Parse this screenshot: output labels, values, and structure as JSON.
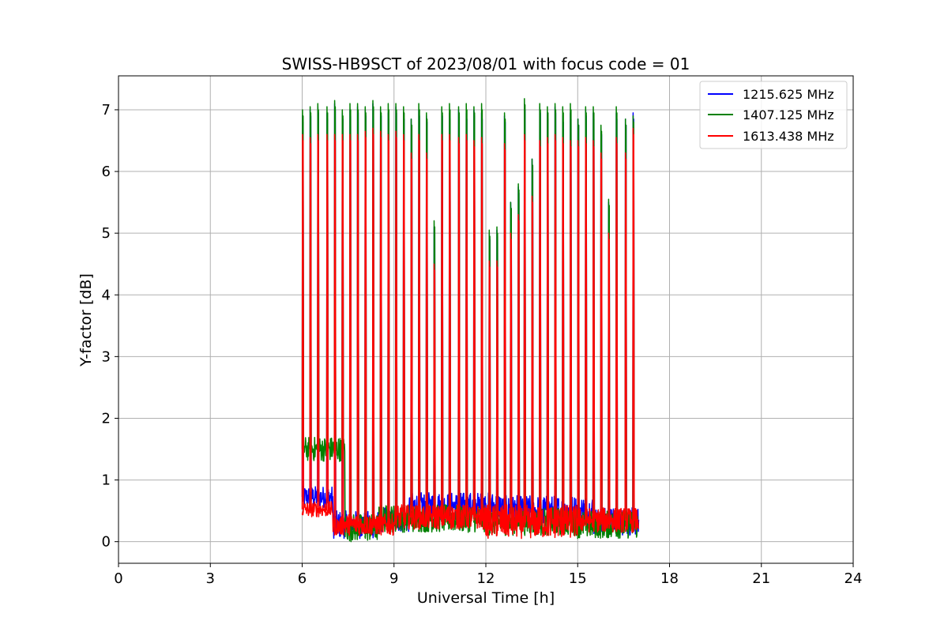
{
  "chart_data": {
    "type": "line",
    "title": "SWISS-HB9SCT of 2023/08/01 with focus code = 01",
    "xlabel": "Universal Time [h]",
    "ylabel": "Y-factor [dB]",
    "xlim": [
      0,
      24
    ],
    "ylim": [
      -0.35,
      7.55
    ],
    "xticks": [
      0,
      3,
      6,
      9,
      12,
      15,
      18,
      21,
      24
    ],
    "yticks": [
      0,
      1,
      2,
      3,
      4,
      5,
      6,
      7
    ],
    "grid": true,
    "legend_position": "top-right",
    "series": [
      {
        "name": "1215.625 MHz",
        "color": "#0000ff",
        "data_start_h": 6.0,
        "data_end_h": 17.0,
        "baseline_segments": [
          {
            "x0": 6.0,
            "x1": 7.0,
            "low": 0.55,
            "high": 0.9
          },
          {
            "x0": 7.0,
            "x1": 8.5,
            "low": 0.05,
            "high": 0.5
          },
          {
            "x0": 8.5,
            "x1": 9.5,
            "low": 0.15,
            "high": 0.55
          },
          {
            "x0": 9.5,
            "x1": 12.5,
            "low": 0.35,
            "high": 0.8
          },
          {
            "x0": 12.5,
            "x1": 15.5,
            "low": 0.25,
            "high": 0.75
          },
          {
            "x0": 15.5,
            "x1": 17.0,
            "low": 0.1,
            "high": 0.55
          }
        ],
        "peaks": [
          [
            6.0,
            6.9
          ],
          [
            6.25,
            7.0
          ],
          [
            6.5,
            7.05
          ],
          [
            6.8,
            6.95
          ],
          [
            7.05,
            7.1
          ],
          [
            7.3,
            6.95
          ],
          [
            7.55,
            7.0
          ],
          [
            7.8,
            7.05
          ],
          [
            8.05,
            7.0
          ],
          [
            8.3,
            7.1
          ],
          [
            8.55,
            7.0
          ],
          [
            8.8,
            6.95
          ],
          [
            9.05,
            7.05
          ],
          [
            9.3,
            6.95
          ],
          [
            9.55,
            6.85
          ],
          [
            9.8,
            7.0
          ],
          [
            10.05,
            6.9
          ],
          [
            10.3,
            5.1
          ],
          [
            10.55,
            7.0
          ],
          [
            10.8,
            6.95
          ],
          [
            11.1,
            7.0
          ],
          [
            11.35,
            6.95
          ],
          [
            11.6,
            7.0
          ],
          [
            11.85,
            6.95
          ],
          [
            12.1,
            5.0
          ],
          [
            12.35,
            5.05
          ],
          [
            12.6,
            6.9
          ],
          [
            12.8,
            5.5
          ],
          [
            13.05,
            5.75
          ],
          [
            13.25,
            7.1
          ],
          [
            13.5,
            6.2
          ],
          [
            13.75,
            7.05
          ],
          [
            14.0,
            6.95
          ],
          [
            14.25,
            7.05
          ],
          [
            14.5,
            6.9
          ],
          [
            14.75,
            6.95
          ],
          [
            15.0,
            6.85
          ],
          [
            15.25,
            7.0
          ],
          [
            15.5,
            6.95
          ],
          [
            15.75,
            6.7
          ],
          [
            16.0,
            5.5
          ],
          [
            16.25,
            6.95
          ],
          [
            16.55,
            6.85
          ],
          [
            16.8,
            6.95
          ]
        ]
      },
      {
        "name": "1407.125 MHz",
        "color": "#008000",
        "data_start_h": 6.0,
        "data_end_h": 17.0,
        "baseline_segments": [
          {
            "x0": 6.0,
            "x1": 7.4,
            "low": 1.3,
            "high": 1.7
          },
          {
            "x0": 7.4,
            "x1": 8.5,
            "low": 0.0,
            "high": 0.45
          },
          {
            "x0": 8.5,
            "x1": 12.0,
            "low": 0.15,
            "high": 0.6
          },
          {
            "x0": 12.0,
            "x1": 15.0,
            "low": 0.1,
            "high": 0.55
          },
          {
            "x0": 15.0,
            "x1": 17.0,
            "low": 0.05,
            "high": 0.5
          }
        ],
        "peaks": [
          [
            6.0,
            7.0
          ],
          [
            6.25,
            7.05
          ],
          [
            6.5,
            7.1
          ],
          [
            6.8,
            7.05
          ],
          [
            7.05,
            7.15
          ],
          [
            7.3,
            7.0
          ],
          [
            7.55,
            7.1
          ],
          [
            7.8,
            7.1
          ],
          [
            8.05,
            7.05
          ],
          [
            8.3,
            7.15
          ],
          [
            8.55,
            7.05
          ],
          [
            8.8,
            7.1
          ],
          [
            9.05,
            7.1
          ],
          [
            9.3,
            7.05
          ],
          [
            9.55,
            6.85
          ],
          [
            9.8,
            7.1
          ],
          [
            10.05,
            6.95
          ],
          [
            10.3,
            5.2
          ],
          [
            10.55,
            7.05
          ],
          [
            10.8,
            7.1
          ],
          [
            11.1,
            7.05
          ],
          [
            11.35,
            7.1
          ],
          [
            11.6,
            7.05
          ],
          [
            11.85,
            7.1
          ],
          [
            12.1,
            5.05
          ],
          [
            12.35,
            5.1
          ],
          [
            12.6,
            6.95
          ],
          [
            12.8,
            5.5
          ],
          [
            13.05,
            5.8
          ],
          [
            13.25,
            7.18
          ],
          [
            13.5,
            6.2
          ],
          [
            13.75,
            7.1
          ],
          [
            14.0,
            7.05
          ],
          [
            14.25,
            7.1
          ],
          [
            14.5,
            7.05
          ],
          [
            14.75,
            7.1
          ],
          [
            15.0,
            6.85
          ],
          [
            15.25,
            7.05
          ],
          [
            15.5,
            7.05
          ],
          [
            15.75,
            6.75
          ],
          [
            16.0,
            5.55
          ],
          [
            16.25,
            7.05
          ],
          [
            16.55,
            6.85
          ],
          [
            16.8,
            6.9
          ]
        ]
      },
      {
        "name": "1613.438 MHz",
        "color": "#ff0000",
        "data_start_h": 6.0,
        "data_end_h": 17.0,
        "baseline_segments": [
          {
            "x0": 6.0,
            "x1": 7.0,
            "low": 0.4,
            "high": 0.65
          },
          {
            "x0": 7.0,
            "x1": 7.3,
            "low": 0.1,
            "high": 0.4
          },
          {
            "x0": 7.3,
            "x1": 9.0,
            "low": 0.1,
            "high": 0.45
          },
          {
            "x0": 9.0,
            "x1": 12.0,
            "low": 0.2,
            "high": 0.6
          },
          {
            "x0": 12.0,
            "x1": 15.0,
            "low": 0.05,
            "high": 0.6
          },
          {
            "x0": 15.0,
            "x1": 17.0,
            "low": 0.15,
            "high": 0.55
          }
        ],
        "peaks": [
          [
            6.0,
            6.6
          ],
          [
            6.25,
            6.55
          ],
          [
            6.5,
            6.6
          ],
          [
            6.8,
            6.6
          ],
          [
            7.05,
            6.6
          ],
          [
            7.3,
            6.6
          ],
          [
            7.55,
            6.6
          ],
          [
            7.8,
            6.6
          ],
          [
            8.05,
            6.65
          ],
          [
            8.3,
            6.7
          ],
          [
            8.55,
            6.65
          ],
          [
            8.8,
            6.6
          ],
          [
            9.05,
            6.65
          ],
          [
            9.3,
            6.6
          ],
          [
            9.55,
            6.3
          ],
          [
            9.8,
            6.6
          ],
          [
            10.05,
            6.3
          ],
          [
            10.3,
            4.5
          ],
          [
            10.55,
            6.6
          ],
          [
            10.8,
            6.6
          ],
          [
            11.1,
            6.55
          ],
          [
            11.35,
            6.6
          ],
          [
            11.6,
            6.5
          ],
          [
            11.85,
            6.55
          ],
          [
            12.1,
            4.55
          ],
          [
            12.35,
            4.55
          ],
          [
            12.6,
            6.45
          ],
          [
            12.8,
            5.0
          ],
          [
            13.05,
            5.3
          ],
          [
            13.25,
            6.6
          ],
          [
            13.5,
            5.6
          ],
          [
            13.75,
            6.5
          ],
          [
            14.0,
            6.55
          ],
          [
            14.25,
            6.6
          ],
          [
            14.5,
            6.55
          ],
          [
            14.75,
            6.5
          ],
          [
            15.0,
            6.5
          ],
          [
            15.25,
            6.55
          ],
          [
            15.5,
            6.5
          ],
          [
            15.75,
            6.3
          ],
          [
            16.0,
            5.0
          ],
          [
            16.25,
            6.55
          ],
          [
            16.55,
            6.3
          ],
          [
            16.8,
            6.7
          ]
        ]
      }
    ]
  }
}
